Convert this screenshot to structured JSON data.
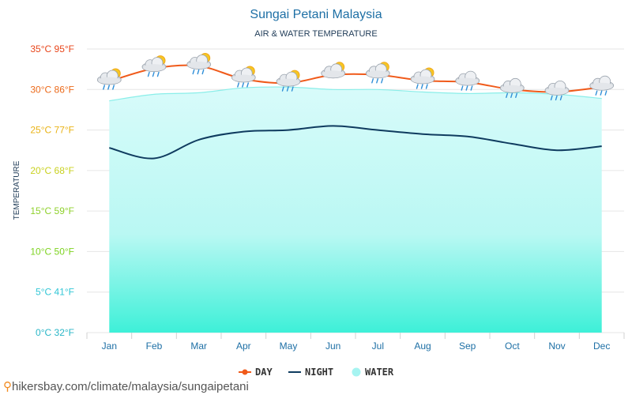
{
  "chart_data": {
    "type": "line",
    "title": "Sungai Petani Malaysia",
    "subtitle": "AIR & WATER TEMPERATURE",
    "ylabel": "TEMPERATURE",
    "categories": [
      "Jan",
      "Feb",
      "Mar",
      "Apr",
      "May",
      "Jun",
      "Jul",
      "Aug",
      "Sep",
      "Oct",
      "Nov",
      "Dec"
    ],
    "ylim": [
      0,
      35
    ],
    "yticks": [
      {
        "value": 0,
        "label": "0°C 32°F",
        "color": "#29b6c7"
      },
      {
        "value": 5,
        "label": "5°C 41°F",
        "color": "#31c6d6"
      },
      {
        "value": 10,
        "label": "10°C 50°F",
        "color": "#7ed321"
      },
      {
        "value": 15,
        "label": "15°C 59°F",
        "color": "#8fd12c"
      },
      {
        "value": 20,
        "label": "20°C 68°F",
        "color": "#c9d11f"
      },
      {
        "value": 25,
        "label": "25°C 77°F",
        "color": "#e9b317"
      },
      {
        "value": 30,
        "label": "30°C 86°F",
        "color": "#ec6a1a"
      },
      {
        "value": 35,
        "label": "35°C 95°F",
        "color": "#e8461b"
      }
    ],
    "grid": true,
    "legend_position": "bottom-center",
    "series": [
      {
        "name": "DAY",
        "color": "#f05a1a",
        "values": [
          31.0,
          32.6,
          32.9,
          31.3,
          30.8,
          31.8,
          31.8,
          31.1,
          30.9,
          30.0,
          29.7,
          30.3
        ]
      },
      {
        "name": "NIGHT",
        "color": "#0f3b5f",
        "values": [
          22.8,
          21.5,
          23.8,
          24.8,
          25.0,
          25.5,
          25.0,
          24.5,
          24.2,
          23.3,
          22.5,
          23.0
        ]
      },
      {
        "name": "WATER",
        "color": "#a6f4f1",
        "values": [
          28.6,
          29.4,
          29.6,
          30.2,
          30.3,
          30.0,
          30.0,
          29.7,
          29.5,
          29.6,
          29.4,
          28.9
        ]
      }
    ],
    "weather_icons": [
      "rain-sun-icon",
      "rain-sun-icon",
      "rain-sun-icon",
      "rain-sun-icon",
      "rain-sun-icon",
      "cloud-sun-icon",
      "rain-sun-icon",
      "rain-sun-icon",
      "rain-cloud-icon",
      "rain-cloud-icon",
      "rain-cloud-icon",
      "rain-cloud-icon"
    ]
  },
  "footer": {
    "url": "hikersbay.com/climate/malaysia/sungaipetani"
  }
}
